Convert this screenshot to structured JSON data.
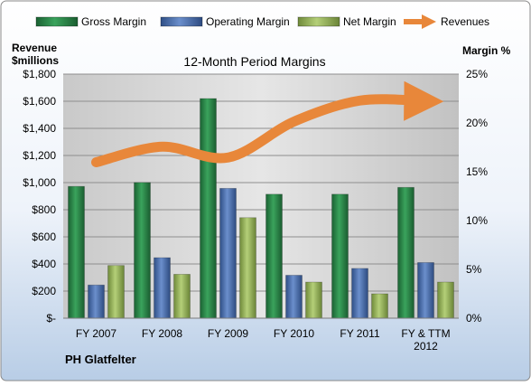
{
  "chart_data": {
    "type": "bar",
    "title": "12-Month Period Margins",
    "company": "PH Glatfelter",
    "left_axis_title_line1": "Revenue",
    "left_axis_title_line2": "$millions",
    "right_axis_title": "Margin %",
    "categories": [
      [
        "FY 2007"
      ],
      [
        "FY 2008"
      ],
      [
        "FY 2009"
      ],
      [
        "FY 2010"
      ],
      [
        "FY 2011"
      ],
      [
        "FY & TTM",
        "2012"
      ]
    ],
    "left_axis": {
      "ylim": [
        0,
        1800
      ],
      "ticks": [
        0,
        200,
        400,
        600,
        800,
        1000,
        1200,
        1400,
        1600,
        1800
      ],
      "tick_labels": [
        "$-",
        "$200",
        "$400",
        "$600",
        "$800",
        "$1,000",
        "$1,200",
        "$1,400",
        "$1,600",
        "$1,800"
      ]
    },
    "right_axis": {
      "ylim": [
        0,
        25
      ],
      "ticks": [
        0,
        5,
        10,
        15,
        20,
        25
      ],
      "tick_labels": [
        "0%",
        "5%",
        "10%",
        "15%",
        "20%",
        "25%"
      ]
    },
    "series": [
      {
        "name": "Gross Margin",
        "kind": "bar",
        "axis": "right",
        "color": "#2d8a4a",
        "values": [
          13.5,
          13.9,
          22.5,
          12.7,
          12.7,
          13.4
        ]
      },
      {
        "name": "Operating Margin",
        "kind": "bar",
        "axis": "right",
        "color": "#4a6fb0",
        "values": [
          3.4,
          6.2,
          13.3,
          4.4,
          5.1,
          5.7
        ]
      },
      {
        "name": "Net Margin",
        "kind": "bar",
        "axis": "right",
        "color": "#98b45a",
        "values": [
          5.4,
          4.5,
          10.3,
          3.7,
          2.5,
          3.7
        ]
      },
      {
        "name": "Revenues",
        "kind": "line",
        "axis": "left",
        "color": "#e8873a",
        "values": [
          1150,
          1265,
          1185,
          1450,
          1605,
          1600
        ]
      }
    ],
    "legend_position": "top",
    "grid": true
  }
}
